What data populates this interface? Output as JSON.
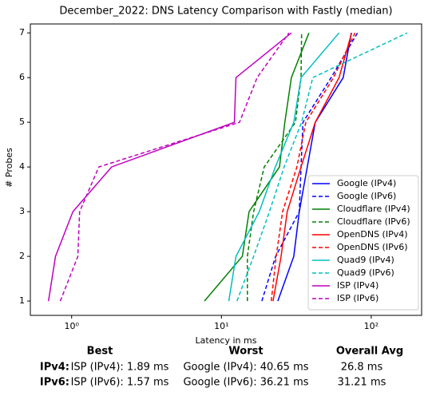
{
  "chart_data": {
    "type": "line",
    "title": "December_2022: DNS Latency Comparison with Fastly (median)",
    "xlabel": "Latency in ms",
    "ylabel": "# Probes",
    "xscale": "log",
    "xlim": [
      0.53,
      217
    ],
    "ylim": [
      0.68,
      7.2
    ],
    "xticks": [
      {
        "value": 1,
        "label": "10⁰"
      },
      {
        "value": 10,
        "label": "10¹"
      },
      {
        "value": 100,
        "label": "10²"
      }
    ],
    "yticks": [
      1,
      2,
      3,
      4,
      5,
      6,
      7
    ],
    "legend": "lower right",
    "y": [
      1,
      2,
      3,
      4,
      5,
      6,
      7
    ],
    "series": [
      {
        "name": "Google (IPv4)",
        "color": "#0000ff",
        "linestyle": "solid",
        "x": [
          23.8,
          30.4,
          33.1,
          37.4,
          42.3,
          65,
          73.6
        ]
      },
      {
        "name": "Google (IPv6)",
        "color": "#0000ff",
        "linestyle": "dashed",
        "x": [
          18.6,
          23,
          33.1,
          34,
          35,
          54,
          81
        ]
      },
      {
        "name": "Cloudflare (IPv4)",
        "color": "#008000",
        "linestyle": "solid",
        "x": [
          7.7,
          13.8,
          15.3,
          24.4,
          26.5,
          29.3,
          38.4
        ]
      },
      {
        "name": "Cloudflare (IPv6)",
        "color": "#008000",
        "linestyle": "dashed",
        "x": [
          14.9,
          14.9,
          16.4,
          19.3,
          31.2,
          34,
          34.3
        ]
      },
      {
        "name": "OpenDNS (IPv4)",
        "color": "#ff0000",
        "linestyle": "solid",
        "x": [
          22.1,
          25,
          27.5,
          34,
          42.3,
          61,
          74
        ]
      },
      {
        "name": "OpenDNS (IPv6)",
        "color": "#ff0000",
        "linestyle": "dashed",
        "x": [
          21.5,
          23.2,
          25.6,
          31.9,
          36.6,
          56,
          78
        ]
      },
      {
        "name": "Quad9 (IPv4)",
        "color": "#00bfbf",
        "linestyle": "solid",
        "x": [
          11.2,
          12.5,
          17.9,
          22.9,
          30.4,
          34,
          61
        ]
      },
      {
        "name": "Quad9 (IPv6)",
        "color": "#00bfbf",
        "linestyle": "dashed",
        "x": [
          12.7,
          16.4,
          20.9,
          26.2,
          34.3,
          40.7,
          174
        ]
      },
      {
        "name": "ISP (IPv4)",
        "color": "#bf00bf",
        "linestyle": "solid",
        "x": [
          0.7,
          0.78,
          1.02,
          1.85,
          12.2,
          12.5,
          29.3
        ]
      },
      {
        "name": "ISP (IPv6)",
        "color": "#bf00bf",
        "linestyle": "dashed",
        "x": [
          0.84,
          1.1,
          1.13,
          1.52,
          13.2,
          17.3,
          28.2
        ]
      }
    ]
  },
  "summary": {
    "headers": [
      "Best",
      "Worst",
      "Overall Avg"
    ],
    "rows": [
      {
        "label": "IPv4:",
        "cells": [
          "ISP (IPv4): 1.89 ms",
          "Google (IPv4): 40.65 ms",
          "26.8 ms"
        ]
      },
      {
        "label": "IPv6:",
        "cells": [
          "ISP (IPv6): 1.57 ms",
          "Google (IPv6): 36.21 ms",
          "31.21 ms"
        ]
      }
    ]
  }
}
